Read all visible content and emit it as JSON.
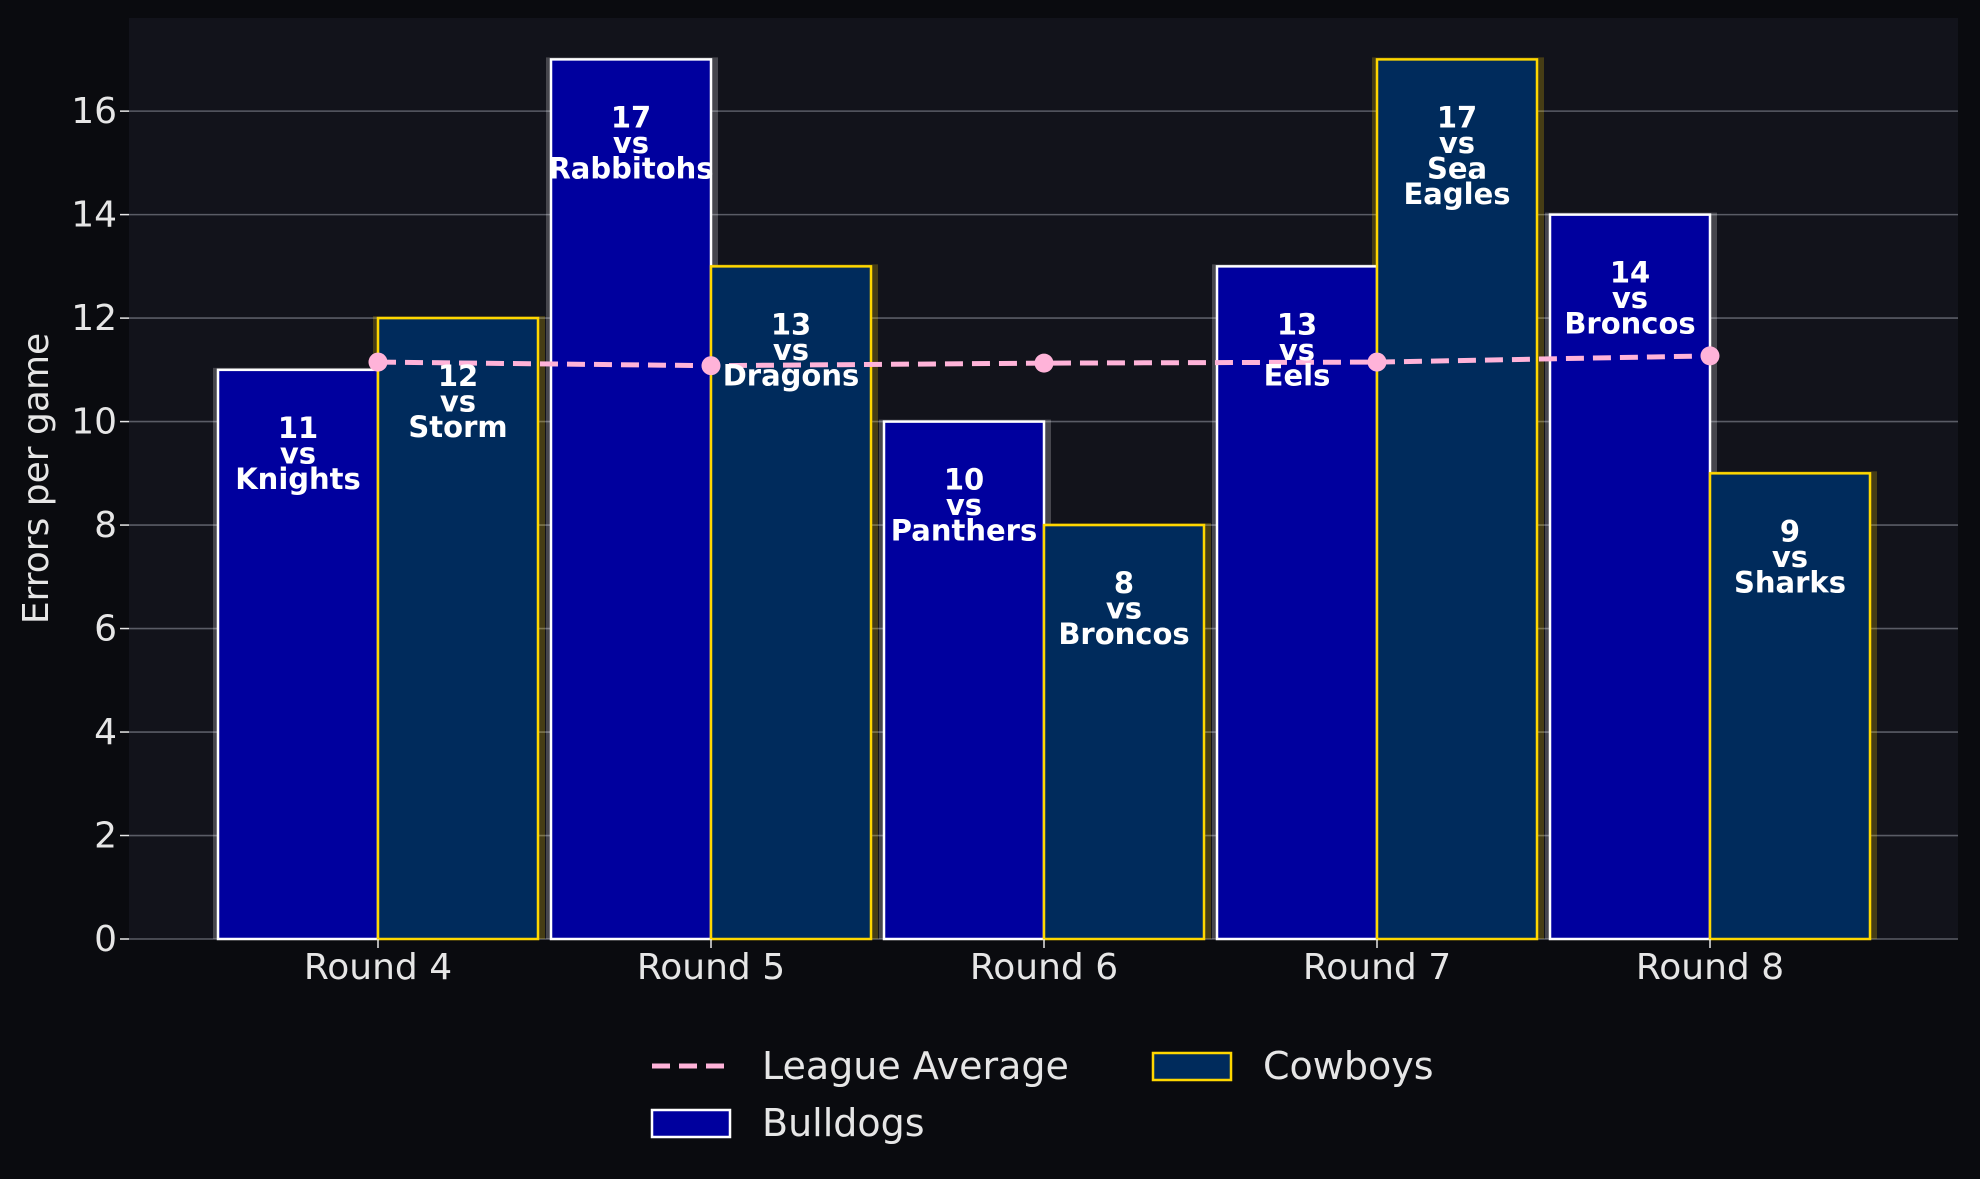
{
  "chart_data": {
    "type": "bar",
    "categories": [
      "Round 4",
      "Round 5",
      "Round 6",
      "Round 7",
      "Round 8"
    ],
    "ylabel": "Errors per game",
    "ylim": [
      0,
      17.8
    ],
    "yticks": [
      0,
      2,
      4,
      6,
      8,
      10,
      12,
      14,
      16
    ],
    "grid": true,
    "legend_position": "bottom-center",
    "series": [
      {
        "name": "Bulldogs",
        "type": "bar",
        "values": [
          11,
          17,
          10,
          13,
          14
        ],
        "opponents": [
          "Knights",
          "Rabbitohs",
          "Panthers",
          "Eels",
          "Broncos"
        ],
        "fill": "#00009e",
        "edge": "#ffffff"
      },
      {
        "name": "Cowboys",
        "type": "bar",
        "values": [
          12,
          13,
          8,
          17,
          9
        ],
        "opponents": [
          "Storm",
          "Dragons",
          "Broncos",
          "Sea Eagles",
          "Sharks"
        ],
        "fill": "#002b5c",
        "edge": "#ffd700"
      },
      {
        "name": "League Average",
        "type": "line",
        "style": "dashed",
        "values": [
          11.15,
          11.08,
          11.13,
          11.15,
          11.27
        ],
        "color": "#ffb3d9"
      }
    ],
    "vs_text": "vs"
  },
  "colors": {
    "figure_background": "#0a0b0f",
    "plot_background": "#12131b",
    "grid": "#5a5c66",
    "text": "#e6e6e6"
  }
}
